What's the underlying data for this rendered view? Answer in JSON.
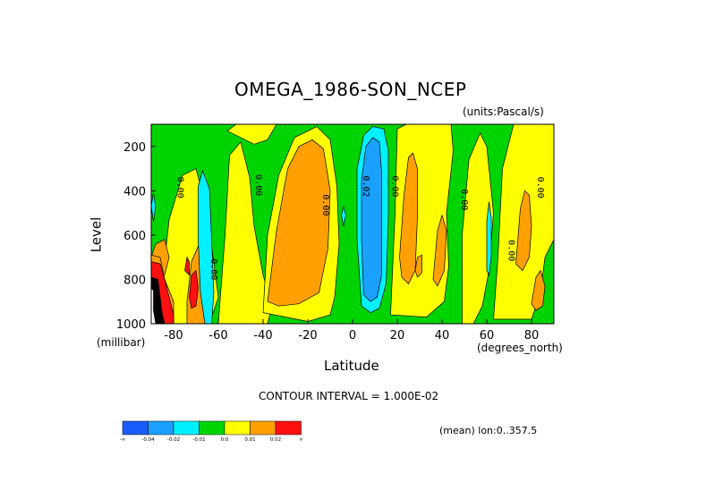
{
  "chart_data": {
    "type": "heatmap",
    "title": "OMEGA_1986-SON_NCEP",
    "units_label": "(units:Pascal/s)",
    "xlabel": "Latitude",
    "xunits": "(degrees_north)",
    "ylabel": "Level",
    "yunits": "(millibar)",
    "xlim": [
      -90,
      90
    ],
    "ylim": [
      1000,
      100
    ],
    "x_ticks": [
      "-80",
      "-60",
      "-40",
      "-20",
      "0",
      "20",
      "40",
      "60",
      "80"
    ],
    "x_tick_values": [
      -80,
      -60,
      -40,
      -20,
      0,
      20,
      40,
      60,
      80
    ],
    "y_ticks": [
      "200",
      "400",
      "600",
      "800",
      "1000"
    ],
    "y_tick_values": [
      200,
      400,
      600,
      800,
      1000
    ],
    "contour_interval_text": "CONTOUR INTERVAL = 1.000E-02",
    "mean_text": "(mean) lon:0..357.5",
    "contour_labels": [
      {
        "text": "0.00",
        "lat": -77,
        "lev": 385
      },
      {
        "text": "0.00",
        "lat": -42,
        "lev": 375
      },
      {
        "text": "0.00",
        "lat": -12,
        "lev": 465
      },
      {
        "text": "0.02",
        "lat": 6,
        "lev": 380
      },
      {
        "text": "0.00",
        "lat": 19,
        "lev": 380
      },
      {
        "text": "0.00",
        "lat": 50,
        "lev": 440
      },
      {
        "text": "0.00",
        "lat": 71,
        "lev": 670
      },
      {
        "text": "0.00",
        "lat": 84,
        "lev": 385
      },
      {
        "text": "0.00",
        "lat": -62,
        "lev": 755
      }
    ],
    "colorbar": {
      "colors": [
        "#1a5cff",
        "#1aa0ff",
        "#00f0ff",
        "#00d400",
        "#ffff00",
        "#ffa000",
        "#ff1010"
      ],
      "labels": [
        "-∞",
        "-0.04",
        "-0.02",
        "-0.01",
        "0.0",
        "0.01",
        "0.02",
        "∞"
      ]
    },
    "regions": [
      {
        "fill": "#00d400",
        "lat": [
          -90,
          90
        ],
        "lev": [
          100,
          1000
        ]
      },
      {
        "fill": "#ffff00",
        "poly": [
          [
            -82,
            530
          ],
          [
            -76,
            330
          ],
          [
            -70,
            300
          ],
          [
            -66,
            450
          ],
          [
            -63,
            650
          ],
          [
            -60,
            880
          ],
          [
            -64,
            1000
          ],
          [
            -80,
            1000
          ],
          [
            -86,
            900
          ]
        ]
      },
      {
        "fill": "#ffff00",
        "poly": [
          [
            -60,
            1000
          ],
          [
            -57,
            600
          ],
          [
            -55,
            240
          ],
          [
            -50,
            180
          ],
          [
            -46,
            340
          ],
          [
            -44,
            560
          ],
          [
            -40,
            780
          ],
          [
            -36,
            920
          ],
          [
            -38,
            1000
          ]
        ]
      },
      {
        "fill": "#ffff00",
        "poly": [
          [
            -40,
            950
          ],
          [
            -38,
            600
          ],
          [
            -33,
            330
          ],
          [
            -26,
            160
          ],
          [
            -16,
            110
          ],
          [
            -10,
            170
          ],
          [
            -7,
            380
          ],
          [
            -6,
            640
          ],
          [
            -8,
            880
          ],
          [
            -10,
            960
          ],
          [
            -20,
            990
          ]
        ]
      },
      {
        "fill": "#ffff00",
        "poly": [
          [
            -56,
            130
          ],
          [
            -52,
            100
          ],
          [
            -34,
            100
          ],
          [
            -38,
            170
          ],
          [
            -44,
            190
          ]
        ]
      },
      {
        "fill": "#ffff00",
        "poly": [
          [
            17,
            960
          ],
          [
            19,
            500
          ],
          [
            20,
            120
          ],
          [
            24,
            100
          ],
          [
            44,
            100
          ],
          [
            45,
            220
          ],
          [
            42,
            500
          ],
          [
            43,
            740
          ],
          [
            41,
            900
          ],
          [
            33,
            970
          ]
        ]
      },
      {
        "fill": "#ffff00",
        "poly": [
          [
            49,
            1000
          ],
          [
            49,
            600
          ],
          [
            52,
            260
          ],
          [
            57,
            140
          ],
          [
            60,
            200
          ],
          [
            63,
            500
          ],
          [
            61,
            760
          ],
          [
            58,
            920
          ],
          [
            54,
            1000
          ]
        ]
      },
      {
        "fill": "#ffff00",
        "poly": [
          [
            63,
            980
          ],
          [
            65,
            700
          ],
          [
            67,
            300
          ],
          [
            72,
            100
          ],
          [
            90,
            100
          ],
          [
            90,
            620
          ],
          [
            86,
            700
          ],
          [
            84,
            860
          ],
          [
            80,
            980
          ]
        ]
      },
      {
        "fill": "#ffa000",
        "poly": [
          [
            -38,
            900
          ],
          [
            -34,
            580
          ],
          [
            -29,
            300
          ],
          [
            -24,
            200
          ],
          [
            -18,
            170
          ],
          [
            -13,
            210
          ],
          [
            -10,
            400
          ],
          [
            -11,
            660
          ],
          [
            -15,
            860
          ],
          [
            -24,
            910
          ],
          [
            -33,
            920
          ]
        ]
      },
      {
        "fill": "#ffa000",
        "poly": [
          [
            21,
            700
          ],
          [
            23,
            420
          ],
          [
            25,
            250
          ],
          [
            27,
            230
          ],
          [
            29,
            300
          ],
          [
            29,
            520
          ],
          [
            28,
            760
          ],
          [
            25,
            820
          ],
          [
            22,
            790
          ]
        ]
      },
      {
        "fill": "#ffa000",
        "poly": [
          [
            36,
            800
          ],
          [
            38,
            580
          ],
          [
            40,
            510
          ],
          [
            42,
            580
          ],
          [
            41,
            760
          ],
          [
            38,
            830
          ]
        ]
      },
      {
        "fill": "#ffa000",
        "poly": [
          [
            73,
            730
          ],
          [
            75,
            480
          ],
          [
            77,
            400
          ],
          [
            79,
            420
          ],
          [
            80,
            560
          ],
          [
            79,
            700
          ],
          [
            76,
            760
          ]
        ]
      },
      {
        "fill": "#ffa000",
        "poly": [
          [
            80,
            910
          ],
          [
            82,
            790
          ],
          [
            84,
            760
          ],
          [
            86,
            830
          ],
          [
            85,
            920
          ],
          [
            82,
            940
          ]
        ]
      },
      {
        "fill": "#ffa000",
        "poly": [
          [
            28,
            760
          ],
          [
            29,
            700
          ],
          [
            31,
            690
          ],
          [
            31,
            770
          ],
          [
            29,
            790
          ]
        ]
      },
      {
        "fill": "#ffa000",
        "poly": [
          [
            -74,
            1000
          ],
          [
            -74,
            900
          ],
          [
            -72,
            720
          ],
          [
            -69,
            650
          ],
          [
            -66,
            750
          ],
          [
            -64,
            900
          ],
          [
            -66,
            1000
          ]
        ]
      },
      {
        "fill": "#ffa000",
        "poly": [
          [
            -90,
            700
          ],
          [
            -88,
            640
          ],
          [
            -84,
            620
          ],
          [
            -82,
            700
          ],
          [
            -84,
            780
          ],
          [
            -88,
            790
          ]
        ]
      },
      {
        "fill": "#ffa000",
        "poly": [
          [
            -90,
            1000
          ],
          [
            -90,
            690
          ],
          [
            -86,
            700
          ],
          [
            -84,
            800
          ],
          [
            -80,
            900
          ],
          [
            -80,
            1000
          ]
        ]
      },
      {
        "fill": "#00f0ff",
        "poly": [
          [
            4,
            920
          ],
          [
            2,
            620
          ],
          [
            2,
            300
          ],
          [
            5,
            150
          ],
          [
            9,
            110
          ],
          [
            14,
            120
          ],
          [
            16,
            220
          ],
          [
            16,
            520
          ],
          [
            15,
            820
          ],
          [
            12,
            930
          ],
          [
            8,
            950
          ]
        ]
      },
      {
        "fill": "#00f0ff",
        "poly": [
          [
            -66,
            1000
          ],
          [
            -68,
            860
          ],
          [
            -69,
            620
          ],
          [
            -69,
            380
          ],
          [
            -67,
            310
          ],
          [
            -64,
            390
          ],
          [
            -63,
            620
          ],
          [
            -62,
            860
          ],
          [
            -63,
            1000
          ]
        ]
      },
      {
        "fill": "#00f0ff",
        "poly": [
          [
            -90,
            470
          ],
          [
            -89,
            410
          ],
          [
            -88,
            470
          ],
          [
            -89,
            540
          ]
        ]
      },
      {
        "fill": "#00f0ff",
        "poly": [
          [
            60,
            760
          ],
          [
            60,
            540
          ],
          [
            61,
            450
          ],
          [
            62,
            520
          ],
          [
            62,
            700
          ],
          [
            61,
            780
          ]
        ]
      },
      {
        "fill": "#00f0ff",
        "poly": [
          [
            -5,
            510
          ],
          [
            -4,
            470
          ],
          [
            -3,
            510
          ],
          [
            -4,
            560
          ]
        ]
      },
      {
        "fill": "#1aa0ff",
        "poly": [
          [
            5,
            870
          ],
          [
            4,
            620
          ],
          [
            4,
            350
          ],
          [
            6,
            200
          ],
          [
            9,
            160
          ],
          [
            12,
            180
          ],
          [
            13,
            320
          ],
          [
            13,
            560
          ],
          [
            13,
            780
          ],
          [
            11,
            880
          ],
          [
            8,
            900
          ]
        ]
      },
      {
        "fill": "#ff1010",
        "poly": [
          [
            -90,
            1000
          ],
          [
            -90,
            720
          ],
          [
            -86,
            730
          ],
          [
            -84,
            800
          ],
          [
            -82,
            880
          ],
          [
            -80,
            960
          ],
          [
            -80,
            1000
          ]
        ]
      },
      {
        "fill": "#ff1010",
        "poly": [
          [
            -73,
            880
          ],
          [
            -72,
            780
          ],
          [
            -70,
            760
          ],
          [
            -69,
            840
          ],
          [
            -70,
            920
          ],
          [
            -72,
            930
          ]
        ]
      },
      {
        "fill": "#ff1010",
        "poly": [
          [
            -75,
            760
          ],
          [
            -74,
            700
          ],
          [
            -73,
            720
          ],
          [
            -73,
            780
          ]
        ]
      },
      {
        "fill": "#000000",
        "poly": [
          [
            -90,
            1000
          ],
          [
            -90,
            790
          ],
          [
            -87,
            800
          ],
          [
            -86,
            880
          ],
          [
            -85,
            960
          ],
          [
            -84,
            1000
          ]
        ]
      },
      {
        "fill": "#ffffff",
        "poly": [
          [
            -90,
            1000
          ],
          [
            -90,
            840
          ],
          [
            -89,
            850
          ],
          [
            -89,
            940
          ],
          [
            -88,
            1000
          ]
        ]
      }
    ]
  }
}
